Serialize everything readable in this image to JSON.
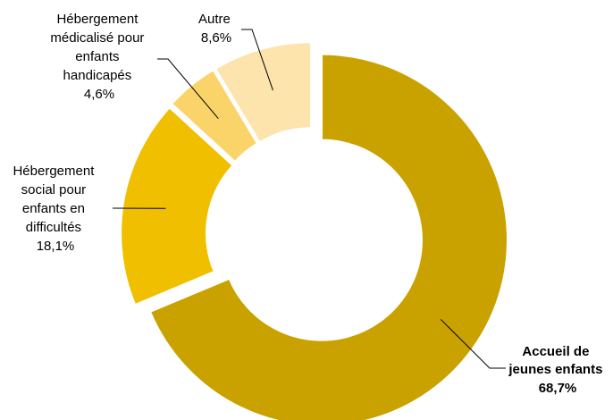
{
  "chart_data": {
    "type": "pie",
    "variant": "donut",
    "slices": [
      {
        "lines": [
          "Accueil de",
          "jeunes enfants"
        ],
        "label_value": "68,7%",
        "value": 68.7,
        "color": "#c9a200",
        "bold": true
      },
      {
        "lines": [
          "Hébergement",
          "social pour",
          "enfants en",
          "difficultés"
        ],
        "label_value": "18,1%",
        "value": 18.1,
        "color": "#f0c000",
        "bold": false
      },
      {
        "lines": [
          "Hébergement",
          "médicalisé pour",
          "enfants",
          "handicapés"
        ],
        "label_value": "4,6%",
        "value": 4.6,
        "color": "#fad468",
        "bold": false
      },
      {
        "lines": [
          "Autre"
        ],
        "label_value": "8,6%",
        "value": 8.6,
        "color": "#fde3ac",
        "bold": false
      }
    ],
    "legend": "none"
  }
}
